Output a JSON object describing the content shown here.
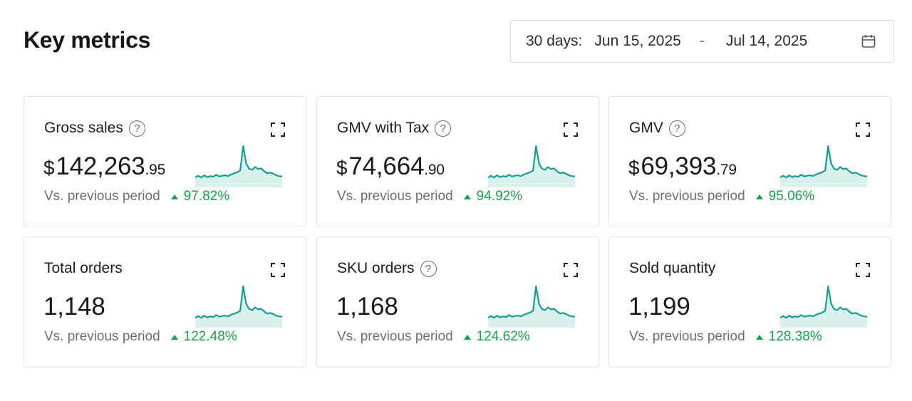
{
  "header": {
    "title": "Key metrics",
    "date_range": {
      "label": "30 days:",
      "start": "Jun 15, 2025",
      "separator": "-",
      "end": "Jul 14, 2025"
    }
  },
  "icons": {
    "help": "question-mark-circle-icon",
    "expand": "expand-corners-icon",
    "calendar": "calendar-icon",
    "trend_up": "triangle-up-icon"
  },
  "colors": {
    "trend_up": "#16a34a",
    "sparkline": "#1a9c93",
    "sparkline_fill": "#d8f1ef"
  },
  "cards": [
    {
      "name": "Gross sales",
      "has_help": true,
      "currency": "$",
      "value_main": "142,263",
      "value_decimal": ".95",
      "compare_label": "Vs. previous period",
      "change": "97.82%"
    },
    {
      "name": "GMV with Tax",
      "has_help": true,
      "currency": "$",
      "value_main": "74,664",
      "value_decimal": ".90",
      "compare_label": "Vs. previous period",
      "change": "94.92%"
    },
    {
      "name": "GMV",
      "has_help": true,
      "currency": "$",
      "value_main": "69,393",
      "value_decimal": ".79",
      "compare_label": "Vs. previous period",
      "change": "95.06%"
    },
    {
      "name": "Total orders",
      "has_help": false,
      "currency": "",
      "value_main": "1,148",
      "value_decimal": "",
      "compare_label": "Vs. previous period",
      "change": "122.48%"
    },
    {
      "name": "SKU orders",
      "has_help": true,
      "currency": "",
      "value_main": "1,168",
      "value_decimal": "",
      "compare_label": "Vs. previous period",
      "change": "124.62%"
    },
    {
      "name": "Sold quantity",
      "has_help": false,
      "currency": "",
      "value_main": "1,199",
      "value_decimal": "",
      "compare_label": "Vs. previous period",
      "change": "128.38%"
    }
  ],
  "sparkline_values": [
    2,
    2.5,
    2,
    2.6,
    2.1,
    2.4,
    2.2,
    2.8,
    2.3,
    2.5,
    2.6,
    2.4,
    2.9,
    3.2,
    3.5,
    4,
    11,
    6,
    4.5,
    4.2,
    5,
    4.4,
    4.6,
    3.8,
    3.2,
    3.4,
    3.1,
    2.6,
    2.4,
    2.3
  ]
}
